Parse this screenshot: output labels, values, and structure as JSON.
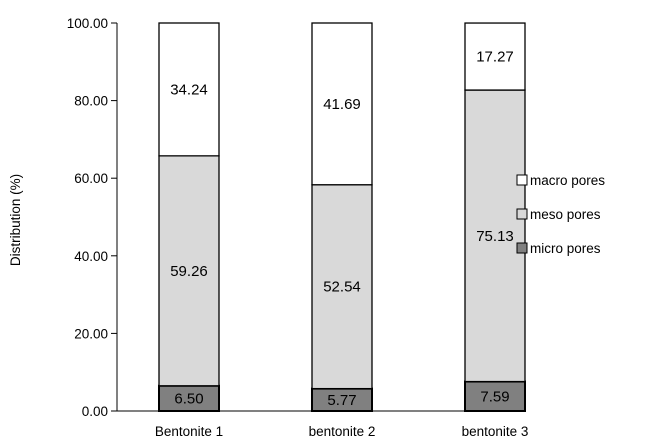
{
  "chart_data": {
    "type": "bar",
    "stacked": true,
    "categories": [
      "Bentonite 1",
      "bentonite 2",
      "bentonite 3"
    ],
    "series": [
      {
        "name": "micro pores",
        "values": [
          6.5,
          5.77,
          7.59
        ],
        "labels": [
          "6.50",
          "5.77",
          "7.59"
        ],
        "color": "#808080"
      },
      {
        "name": "meso pores",
        "values": [
          59.26,
          52.54,
          75.13
        ],
        "labels": [
          "59.26",
          "52.54",
          "75.13"
        ],
        "color": "#d9d9d9"
      },
      {
        "name": "macro pores",
        "values": [
          34.24,
          41.69,
          17.27
        ],
        "labels": [
          "34.24",
          "41.69",
          "17.27"
        ],
        "color": "#ffffff"
      }
    ],
    "legend_order": [
      "macro pores",
      "meso pores",
      "micro pores"
    ],
    "legend_position": "right",
    "xlabel": "",
    "ylabel": "Distribution (%)",
    "ylim": [
      0,
      100
    ],
    "yticks": [
      "0.00",
      "20.00",
      "40.00",
      "60.00",
      "80.00",
      "100.00"
    ],
    "grid": false
  }
}
